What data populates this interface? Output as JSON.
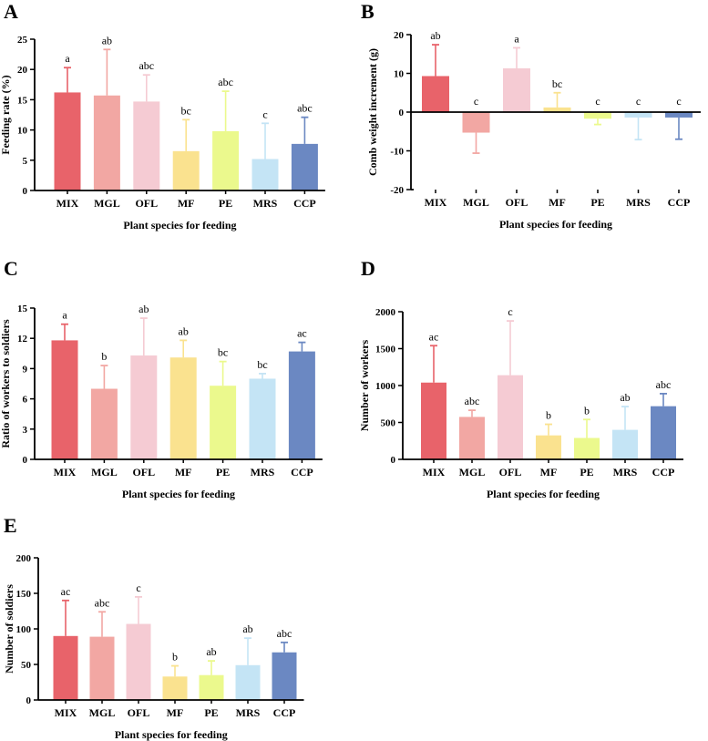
{
  "colors": {
    "MIX": "#e8636a",
    "MGL": "#f2a7a3",
    "OFL": "#f5cbd3",
    "MF": "#fae28f",
    "PE": "#ebf98d",
    "MRS": "#c4e4f5",
    "CCP": "#6b88c2"
  },
  "chart_data": [
    {
      "panel": "A",
      "type": "bar",
      "xlabel": "Plant species for feeding",
      "ylabel": "Feeding rate (%)",
      "ylim": [
        0,
        25
      ],
      "yticks": [
        0,
        5,
        10,
        15,
        20,
        25
      ],
      "categories": [
        "MIX",
        "MGL",
        "OFL",
        "MF",
        "PE",
        "MRS",
        "CCP"
      ],
      "values": [
        16.2,
        15.7,
        14.7,
        6.5,
        9.8,
        5.2,
        7.7
      ],
      "error_top": [
        20.3,
        23.3,
        19.1,
        11.7,
        16.4,
        11.1,
        12.1
      ],
      "significance": [
        "a",
        "ab",
        "abc",
        "bc",
        "abc",
        "c",
        "abc"
      ]
    },
    {
      "panel": "B",
      "type": "bar",
      "xlabel": "Plant species for feeding",
      "ylabel": "Comb weight  increment (g)",
      "ylim": [
        -20,
        20
      ],
      "yticks": [
        -20,
        -10,
        0,
        10,
        20
      ],
      "categories": [
        "MIX",
        "MGL",
        "OFL",
        "MF",
        "PE",
        "MRS",
        "CCP"
      ],
      "values": [
        9.3,
        -5.3,
        11.3,
        1.2,
        -1.7,
        -1.4,
        -1.4
      ],
      "error_top": [
        17.4,
        -10.6,
        16.6,
        5.0,
        -3.2,
        -7.1,
        -7.0
      ],
      "significance": [
        "ab",
        "c",
        "a",
        "bc",
        "c",
        "c",
        "c"
      ]
    },
    {
      "panel": "C",
      "type": "bar",
      "xlabel": "Plant species for feeding",
      "ylabel": "Ratio of workers to soldiers",
      "ylim": [
        0,
        15
      ],
      "yticks": [
        0,
        3,
        6,
        9,
        12,
        15
      ],
      "categories": [
        "MIX",
        "MGL",
        "OFL",
        "MF",
        "PE",
        "MRS",
        "CCP"
      ],
      "values": [
        11.8,
        7.0,
        10.3,
        10.1,
        7.3,
        8.0,
        10.7
      ],
      "error_top": [
        13.4,
        9.3,
        14.0,
        11.8,
        9.7,
        8.5,
        11.6
      ],
      "significance": [
        "a",
        "b",
        "ab",
        "ab",
        "bc",
        "bc",
        "ac"
      ]
    },
    {
      "panel": "D",
      "type": "bar",
      "xlabel": "Plant species for feeding",
      "ylabel": "Number of workers",
      "ylim": [
        0,
        2000
      ],
      "yticks": [
        0,
        500,
        1000,
        1500,
        2000
      ],
      "categories": [
        "MIX",
        "MGL",
        "OFL",
        "MF",
        "PE",
        "MRS",
        "CCP"
      ],
      "values": [
        1040,
        575,
        1140,
        325,
        290,
        400,
        720
      ],
      "error_top": [
        1540,
        665,
        1875,
        475,
        540,
        715,
        890
      ],
      "significance": [
        "ac",
        "abc",
        "c",
        "b",
        "b",
        "ab",
        "abc"
      ]
    },
    {
      "panel": "E",
      "type": "bar",
      "xlabel": "Plant species for feeding",
      "ylabel": "Number of soldiers",
      "ylim": [
        0,
        200
      ],
      "yticks": [
        0,
        50,
        100,
        150,
        200
      ],
      "categories": [
        "MIX",
        "MGL",
        "OFL",
        "MF",
        "PE",
        "MRS",
        "CCP"
      ],
      "values": [
        90,
        89,
        107,
        33,
        35,
        49,
        67
      ],
      "error_top": [
        140,
        124,
        145,
        48,
        55,
        87,
        81
      ],
      "significance": [
        "ac",
        "abc",
        "c",
        "b",
        "ab",
        "ab",
        "abc"
      ]
    }
  ]
}
